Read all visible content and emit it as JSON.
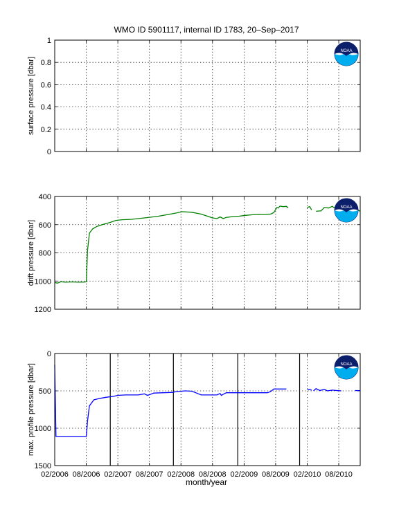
{
  "figure": {
    "title": "WMO ID 5901117, internal ID 1783, 20–Sep–2017",
    "xlabel": "month/year"
  },
  "logo": {
    "text": "NOAA",
    "icon": "noaa-logo"
  },
  "colors": {
    "green": "#008000",
    "blue": "#0000ff",
    "logo_navy": "#0b1f6b",
    "logo_cyan": "#00aeef",
    "grid": "#000000"
  },
  "chart_data": [
    {
      "type": "line",
      "name": "surface",
      "ylabel": "surface pressure [dbar]",
      "ylim": [
        0,
        1
      ],
      "yreversed": false,
      "yticks": [
        0,
        0.2,
        0.4,
        0.6,
        0.8,
        1
      ],
      "yticklabels": [
        "0",
        "0.2",
        "0.4",
        "0.6",
        "0.8",
        "1"
      ],
      "xlim": [
        2006.08,
        2010.92
      ],
      "xticks": [
        2006.08,
        2006.58,
        2007.08,
        2007.58,
        2008.08,
        2008.58,
        2009.08,
        2009.58,
        2010.08,
        2010.58
      ],
      "xticklabels": [],
      "series": [],
      "vlines": []
    },
    {
      "type": "line",
      "name": "drift",
      "ylabel": "drift pressure [dbar]",
      "ylim": [
        400,
        1200
      ],
      "yreversed": true,
      "yticks": [
        400,
        600,
        800,
        1000,
        1200
      ],
      "yticklabels": [
        "400",
        "600",
        "800",
        "1000",
        "1200"
      ],
      "xlim": [
        2006.08,
        2010.92
      ],
      "xticks": [
        2006.08,
        2006.58,
        2007.08,
        2007.58,
        2008.08,
        2008.58,
        2009.08,
        2009.58,
        2010.08,
        2010.58
      ],
      "xticklabels": [],
      "vlines": [],
      "series": [
        {
          "color": "#008000",
          "segments": [
            [
              [
                2006.08,
                1010
              ],
              [
                2006.12,
                1015
              ],
              [
                2006.18,
                1005
              ],
              [
                2006.25,
                1008
              ],
              [
                2006.35,
                1006
              ],
              [
                2006.45,
                1008
              ],
              [
                2006.55,
                1007
              ],
              [
                2006.58,
                1005
              ],
              [
                2006.6,
                780
              ],
              [
                2006.63,
                660
              ],
              [
                2006.68,
                630
              ],
              [
                2006.75,
                612
              ],
              [
                2006.85,
                598
              ],
              [
                2006.95,
                585
              ],
              [
                2007.05,
                570
              ],
              [
                2007.15,
                565
              ],
              [
                2007.3,
                562
              ],
              [
                2007.5,
                552
              ],
              [
                2007.7,
                542
              ],
              [
                2007.85,
                530
              ],
              [
                2008.0,
                518
              ],
              [
                2008.1,
                508
              ],
              [
                2008.25,
                512
              ],
              [
                2008.4,
                525
              ],
              [
                2008.5,
                540
              ],
              [
                2008.58,
                552
              ],
              [
                2008.65,
                557
              ],
              [
                2008.7,
                545
              ],
              [
                2008.75,
                557
              ],
              [
                2008.8,
                548
              ],
              [
                2008.9,
                543
              ],
              [
                2009.0,
                540
              ],
              [
                2009.1,
                534
              ],
              [
                2009.2,
                530
              ],
              [
                2009.3,
                527
              ],
              [
                2009.4,
                528
              ],
              [
                2009.5,
                525
              ],
              [
                2009.55,
                515
              ],
              [
                2009.6,
                478
              ],
              [
                2009.62,
                482
              ],
              [
                2009.65,
                468
              ],
              [
                2009.7,
                472
              ],
              [
                2009.75,
                470
              ],
              [
                2009.78,
                480
              ]
            ],
            [
              [
                2010.08,
                478
              ],
              [
                2010.12,
                472
              ],
              [
                2010.15,
                495
              ]
            ],
            [
              [
                2010.22,
                505
              ],
              [
                2010.3,
                502
              ],
              [
                2010.35,
                478
              ],
              [
                2010.42,
                482
              ],
              [
                2010.48,
                470
              ],
              [
                2010.5,
                478
              ],
              [
                2010.56,
                474
              ],
              [
                2010.62,
                472
              ]
            ],
            [
              [
                2010.84,
                485
              ],
              [
                2010.92,
                505
              ]
            ]
          ]
        }
      ]
    },
    {
      "type": "line",
      "name": "profile",
      "ylabel": "max. profile pressure [dbar]",
      "ylim": [
        0,
        1500
      ],
      "yreversed": true,
      "yticks": [
        0,
        500,
        1000,
        1500
      ],
      "yticklabels": [
        "0",
        "500",
        "1000",
        "1500"
      ],
      "xlim": [
        2006.08,
        2010.92
      ],
      "xticks": [
        2006.08,
        2006.58,
        2007.08,
        2007.58,
        2008.08,
        2008.58,
        2009.08,
        2009.58,
        2010.08,
        2010.58
      ],
      "xticklabels": [
        "02/2006",
        "08/2006",
        "02/2007",
        "08/2007",
        "02/2008",
        "08/2008",
        "02/2009",
        "08/2009",
        "02/2010",
        "08/2010"
      ],
      "vlines": [
        2006.96,
        2007.96,
        2008.98,
        2009.96
      ],
      "series": [
        {
          "color": "#0000ff",
          "segments": [
            [
              [
                2006.08,
                150
              ],
              [
                2006.1,
                1110
              ],
              [
                2006.3,
                1110
              ],
              [
                2006.58,
                1110
              ],
              [
                2006.6,
                900
              ],
              [
                2006.63,
                700
              ],
              [
                2006.7,
                620
              ],
              [
                2006.8,
                600
              ],
              [
                2006.9,
                585
              ],
              [
                2007.0,
                575
              ],
              [
                2007.08,
                560
              ],
              [
                2007.2,
                555
              ],
              [
                2007.4,
                555
              ],
              [
                2007.5,
                540
              ],
              [
                2007.55,
                560
              ],
              [
                2007.6,
                545
              ],
              [
                2007.65,
                530
              ],
              [
                2007.8,
                525
              ],
              [
                2007.95,
                520
              ],
              [
                2008.0,
                510
              ],
              [
                2008.08,
                505
              ],
              [
                2008.15,
                500
              ],
              [
                2008.25,
                505
              ],
              [
                2008.3,
                520
              ],
              [
                2008.4,
                555
              ],
              [
                2008.55,
                555
              ],
              [
                2008.65,
                555
              ],
              [
                2008.7,
                535
              ],
              [
                2008.72,
                560
              ],
              [
                2008.75,
                545
              ],
              [
                2008.8,
                525
              ],
              [
                2008.95,
                525
              ],
              [
                2009.1,
                525
              ],
              [
                2009.3,
                525
              ],
              [
                2009.45,
                525
              ],
              [
                2009.5,
                510
              ],
              [
                2009.55,
                475
              ],
              [
                2009.7,
                475
              ],
              [
                2009.75,
                475
              ]
            ],
            [
              [
                2010.08,
                475
              ],
              [
                2010.15,
                490
              ]
            ],
            [
              [
                2010.18,
                500
              ],
              [
                2010.22,
                470
              ],
              [
                2010.28,
                495
              ],
              [
                2010.35,
                480
              ],
              [
                2010.4,
                500
              ],
              [
                2010.48,
                490
              ],
              [
                2010.55,
                495
              ],
              [
                2010.62,
                500
              ]
            ],
            [
              [
                2010.84,
                495
              ],
              [
                2010.92,
                497
              ]
            ]
          ]
        }
      ]
    }
  ]
}
